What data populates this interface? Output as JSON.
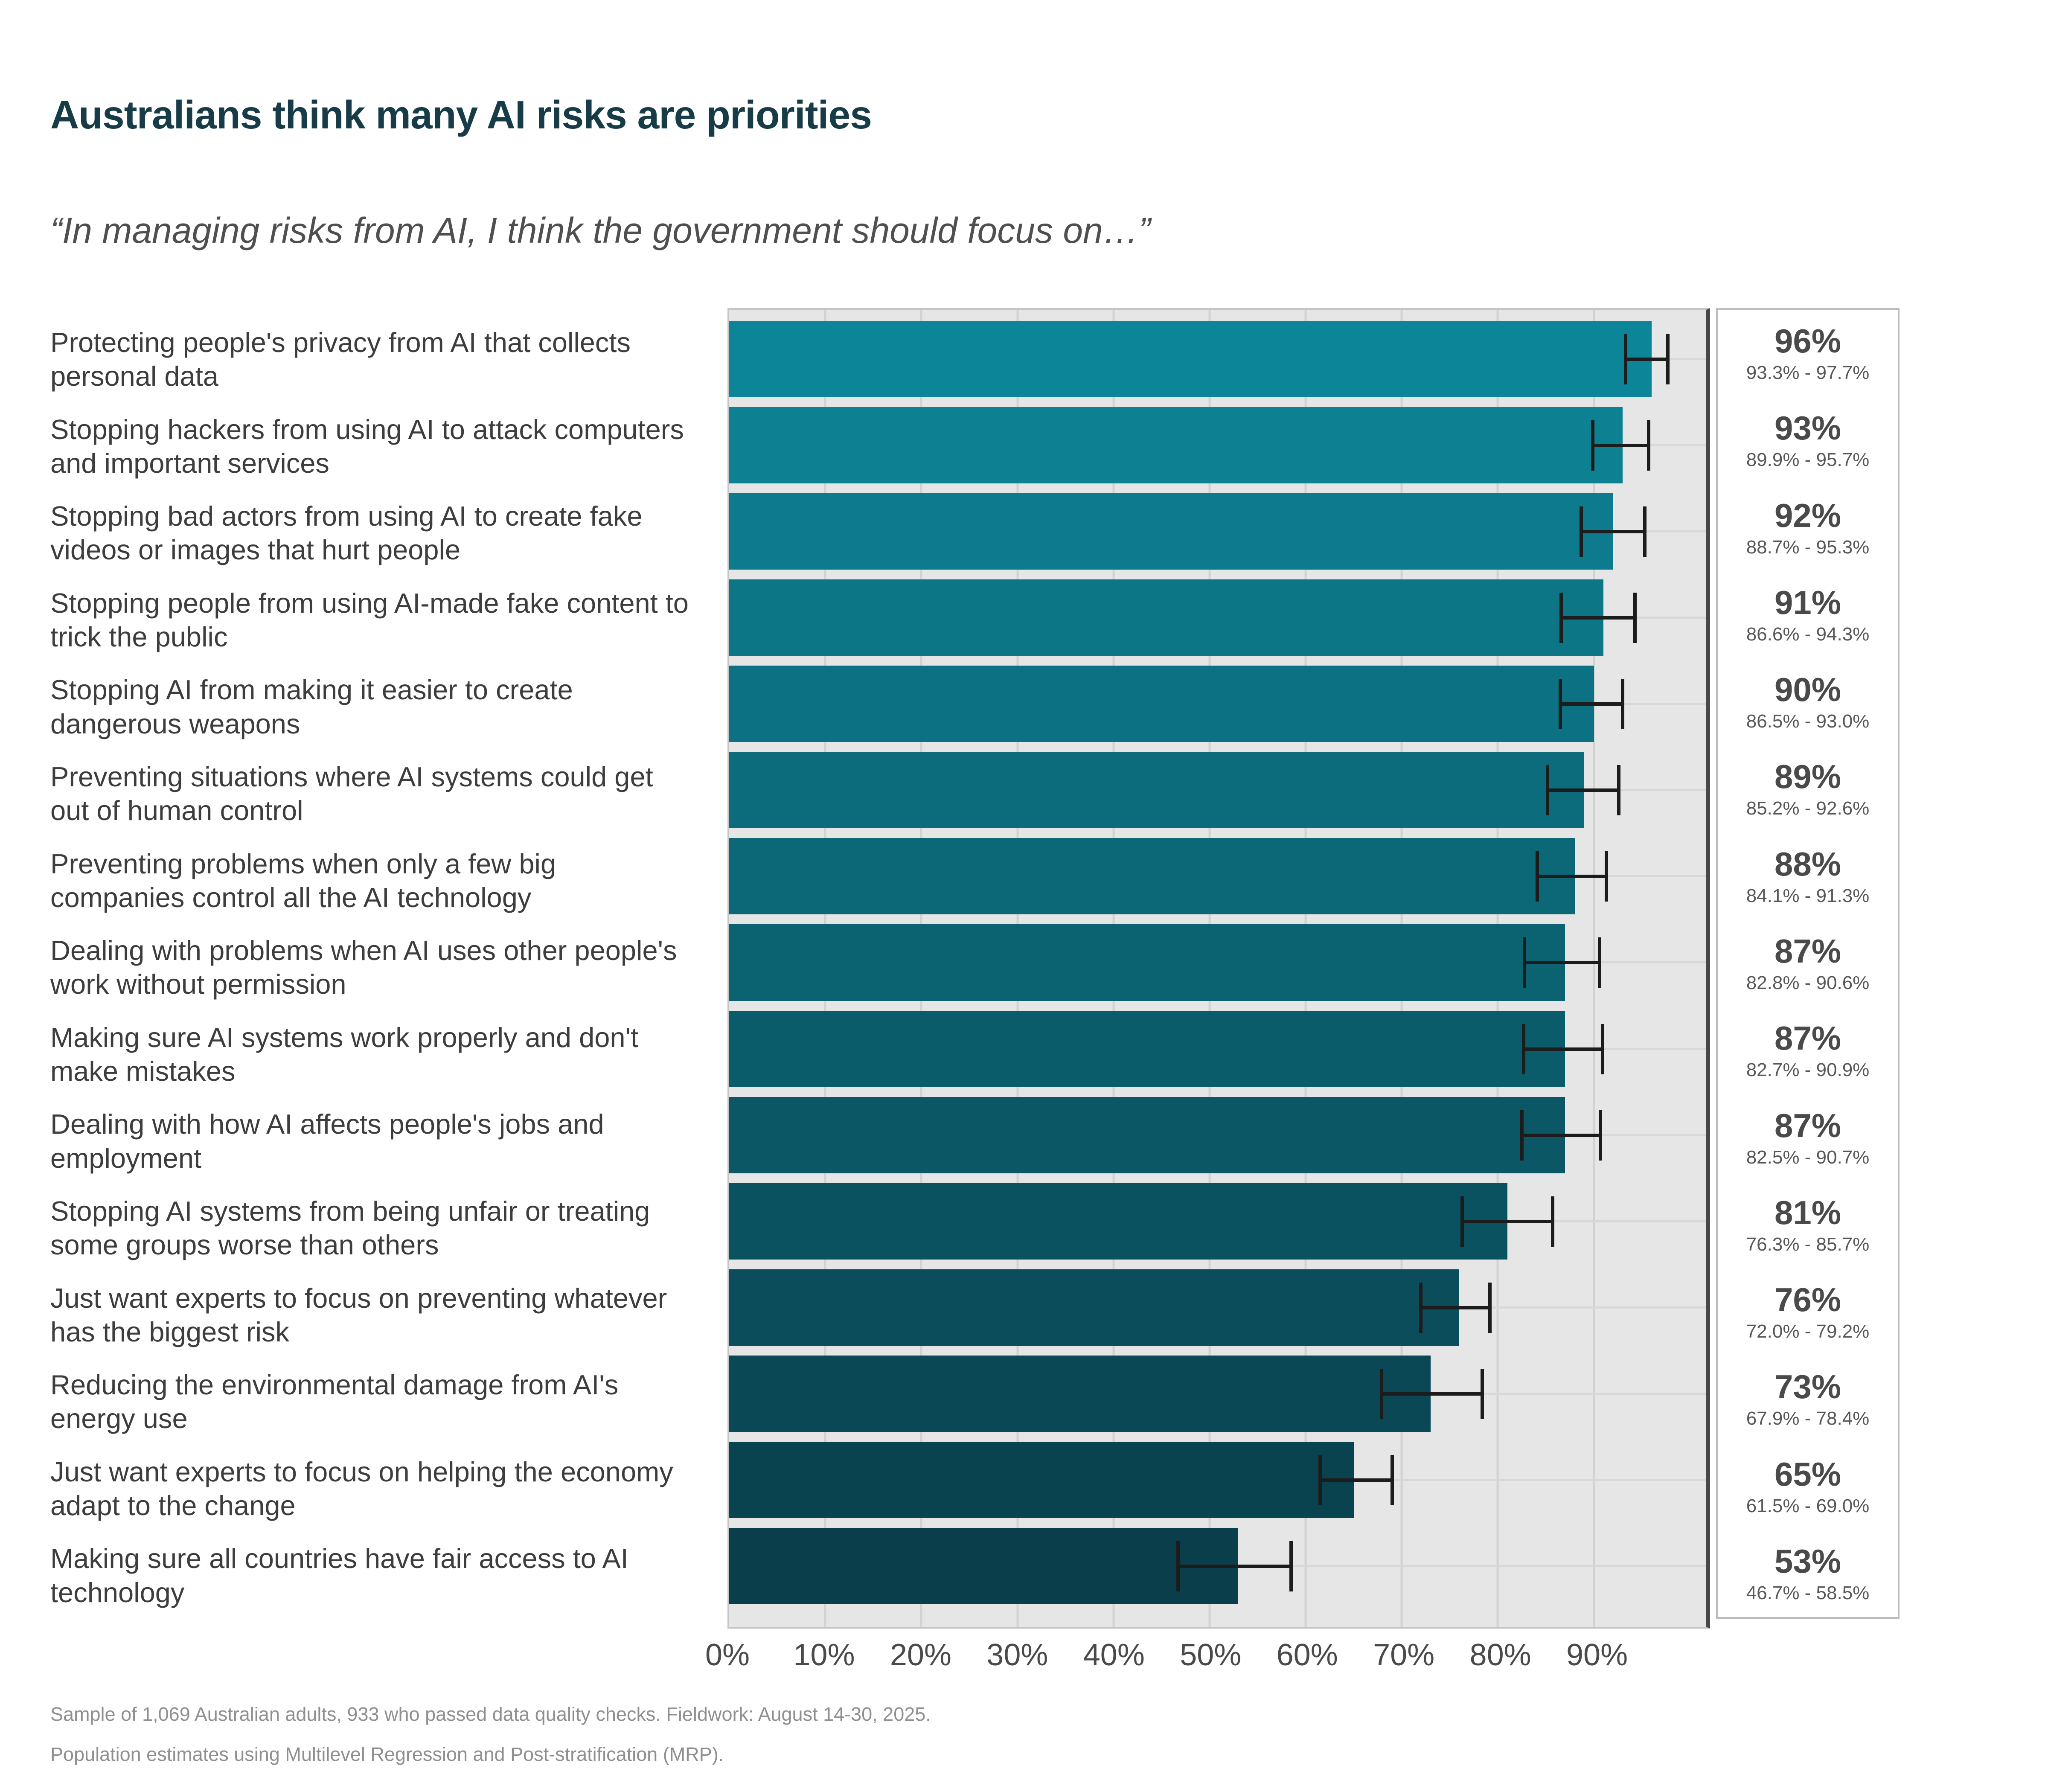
{
  "title": "Australians think many AI risks are priorities",
  "subtitle": "“In managing risks from AI, I think the government should focus on…”",
  "footer": {
    "line1": "Sample of 1,069 Australian adults, 933 who passed data quality checks. Fieldwork: August 14-30, 2025.",
    "line2": "Population estimates using Multilevel Regression and Post-stratification (MRP)."
  },
  "axis": {
    "tick_values": [
      0,
      10,
      20,
      30,
      40,
      50,
      60,
      70,
      80,
      90
    ],
    "tick_labels": [
      "0%",
      "10%",
      "20%",
      "30%",
      "40%",
      "50%",
      "60%",
      "70%",
      "80%",
      "90%"
    ],
    "xmax": 101.7
  },
  "colors": {
    "title": "#173c47",
    "subtitle": "#4f4f4f",
    "plot_background": "#e6e6e6",
    "gridline": "#d2d2d2",
    "row_line": "#d8d8d8",
    "plot_right_border": "#484848",
    "error_bar": "#1c1c1c",
    "panel_border": "#bdbdbd",
    "value_text": "#4a4a4a",
    "ci_text": "#585858",
    "footer_text": "#8f8f8f"
  },
  "chart_data": {
    "type": "bar",
    "orientation": "horizontal",
    "title": "Australians think many AI risks are priorities",
    "xlabel": "",
    "ylabel": "",
    "xlim": [
      0,
      101.7
    ],
    "grid": "vertical lines every 10%",
    "legend": "none",
    "categories": [
      "Protecting people's privacy from AI that collects personal data",
      "Stopping hackers from using AI to attack computers and important services",
      "Stopping bad actors from using AI to create fake videos or images that hurt people",
      "Stopping people from using AI-made fake content to trick the public",
      "Stopping AI from making it easier to create dangerous weapons",
      "Preventing situations where AI systems could get out of human control",
      "Preventing problems when only a few big companies control all the AI technology",
      "Dealing with problems when AI uses other people's work without permission",
      "Making sure AI systems work properly and don't make mistakes",
      "Dealing with how AI affects people's jobs and employment",
      "Stopping AI systems from being unfair or treating some groups worse than others",
      "Just want experts to focus on preventing whatever has the biggest risk",
      "Reducing the environmental damage from AI's energy use",
      "Just want experts to focus on helping the economy adapt to the change",
      "Making sure all countries have fair access to AI technology"
    ],
    "values": [
      96,
      93,
      92,
      91,
      90,
      89,
      88,
      87,
      87,
      87,
      81,
      76,
      73,
      65,
      53
    ],
    "value_labels": [
      "96%",
      "93%",
      "92%",
      "91%",
      "90%",
      "89%",
      "88%",
      "87%",
      "87%",
      "87%",
      "81%",
      "76%",
      "73%",
      "65%",
      "53%"
    ],
    "ci_low": [
      93.3,
      89.9,
      88.7,
      86.6,
      86.5,
      85.2,
      84.1,
      82.8,
      82.7,
      82.5,
      76.3,
      72.0,
      67.9,
      61.5,
      46.7
    ],
    "ci_high": [
      97.7,
      95.7,
      95.3,
      94.3,
      93.0,
      92.6,
      91.3,
      90.6,
      90.9,
      90.7,
      85.7,
      79.2,
      78.4,
      69.0,
      58.5
    ],
    "ci_labels": [
      "93.3% - 97.7%",
      "89.9% - 95.7%",
      "88.7% - 95.3%",
      "86.6% - 94.3%",
      "86.5% - 93.0%",
      "85.2% - 92.6%",
      "84.1% - 91.3%",
      "82.8% - 90.6%",
      "82.7% - 90.9%",
      "82.5% - 90.7%",
      "76.3% - 85.7%",
      "72.0% - 79.2%",
      "67.9% - 78.4%",
      "61.5% - 69.0%",
      "46.7% - 58.5%"
    ],
    "bar_colors": [
      "#0D8598",
      "#0D8092",
      "#0D7B8D",
      "#0C7687",
      "#0C7182",
      "#0C6C7C",
      "#0C6777",
      "#0B6271",
      "#0B5C6B",
      "#0B5766",
      "#0B5260",
      "#0B4D5B",
      "#0A4855",
      "#0A4350",
      "#0A3E4A"
    ]
  }
}
